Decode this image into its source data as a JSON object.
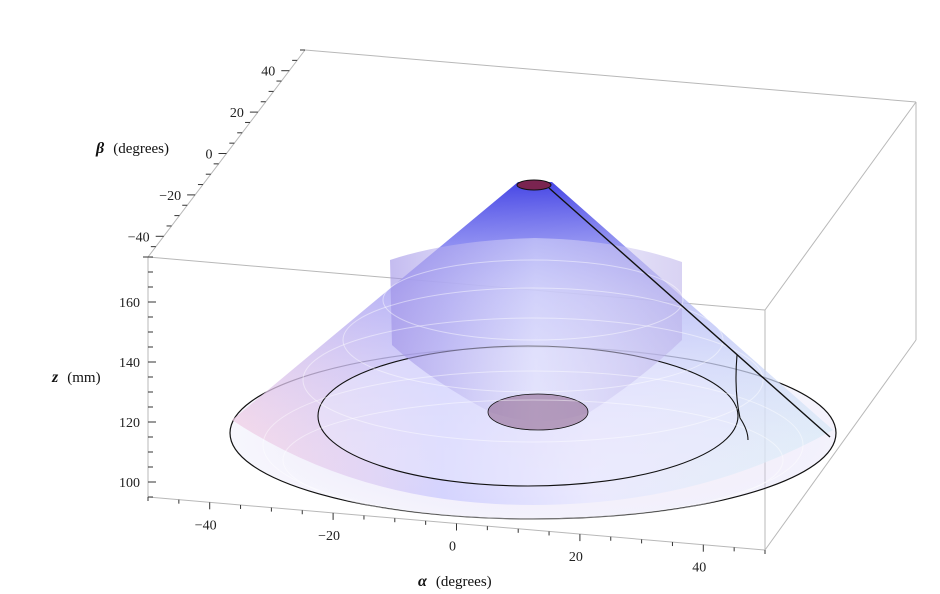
{
  "chart_data": {
    "type": "surface3d",
    "axes": {
      "alpha": {
        "symbol": "α",
        "label": "(degrees)",
        "range": [
          -50,
          50
        ],
        "ticks": [
          -40,
          -20,
          0,
          20,
          40
        ],
        "tick_labels": [
          "−40",
          "−20",
          "0",
          "20",
          "40"
        ]
      },
      "beta": {
        "symbol": "β",
        "label": "(degrees)",
        "range": [
          -50,
          50
        ],
        "ticks": [
          40,
          20,
          0,
          -20,
          -40
        ],
        "tick_labels": [
          "40",
          "20",
          "0",
          "−20",
          "−40"
        ]
      },
      "z": {
        "symbol": "z",
        "label": "(mm)",
        "range": [
          95,
          175
        ],
        "ticks": [
          160,
          140,
          120,
          100
        ],
        "tick_labels": [
          "160",
          "140",
          "120",
          "100"
        ]
      }
    },
    "surfaces": [
      {
        "kind": "outer-cone",
        "base_radius_deg": 47,
        "z_base": 120,
        "z_top": 170
      },
      {
        "kind": "inner-disc",
        "radius_deg": 34,
        "z": 120
      },
      {
        "kind": "inner-volume",
        "z_min": 120,
        "z_max": 158
      }
    ],
    "colors": {
      "cone_top": "#3a3ae8",
      "cone_mid": "#eeeeff",
      "cone_pink": "#f0b8cf",
      "box": "#b8b8b8",
      "cap": "#7a2450"
    }
  }
}
